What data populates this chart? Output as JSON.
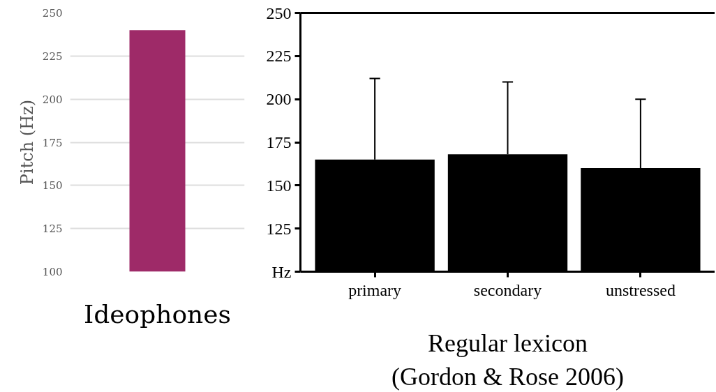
{
  "chart_data": [
    {
      "type": "bar",
      "categories": [
        null
      ],
      "values": [
        240
      ],
      "color": "#9e2a68",
      "ylim": [
        100,
        250
      ],
      "yticks": [
        100,
        125,
        150,
        175,
        200,
        225,
        250
      ],
      "grid": "y",
      "ylabel": "Pitch (Hz)",
      "xlabel": "Ideophones"
    },
    {
      "type": "bar",
      "categories": [
        "primary",
        "secondary",
        "unstressed"
      ],
      "values": [
        165,
        168,
        160
      ],
      "errors": [
        [
          165,
          212
        ],
        [
          168,
          210
        ],
        [
          160,
          200
        ]
      ],
      "color": "#000000",
      "ylim": [
        100,
        250
      ],
      "yticks": [
        {
          "value": 100,
          "label": "Hz"
        },
        125,
        150,
        175,
        200,
        225,
        250
      ],
      "grid": false,
      "xlabel": "Regular lexicon\n(Gordon & Rose 2006)"
    }
  ]
}
